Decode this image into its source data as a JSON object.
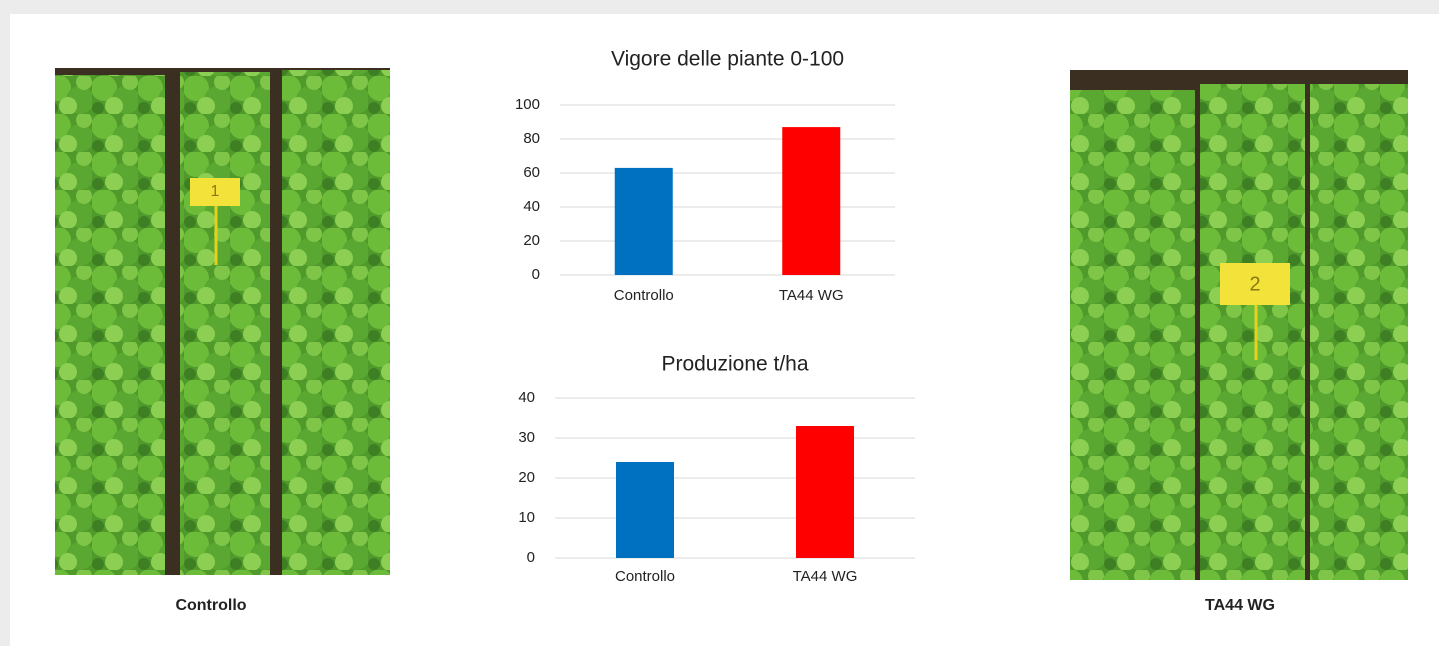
{
  "chart_data": [
    {
      "type": "bar",
      "title": "Vigore delle piante 0-100",
      "categories": [
        "Controllo",
        "TA44 WG"
      ],
      "values": [
        63,
        87
      ],
      "colors": [
        "#0070c0",
        "#ff0000"
      ],
      "ylim": [
        0,
        100
      ],
      "yticks": [
        0,
        20,
        40,
        60,
        80,
        100
      ],
      "grid": true
    },
    {
      "type": "bar",
      "title": "Produzione t/ha",
      "categories": [
        "Controllo",
        "TA44 WG"
      ],
      "values": [
        24,
        33
      ],
      "colors": [
        "#0070c0",
        "#ff0000"
      ],
      "ylim": [
        0,
        40
      ],
      "yticks": [
        0,
        10,
        20,
        30,
        40
      ],
      "grid": true
    }
  ],
  "photos": [
    {
      "sign": "1",
      "caption": "Controllo"
    },
    {
      "sign": "2",
      "caption": "TA44 WG"
    }
  ]
}
